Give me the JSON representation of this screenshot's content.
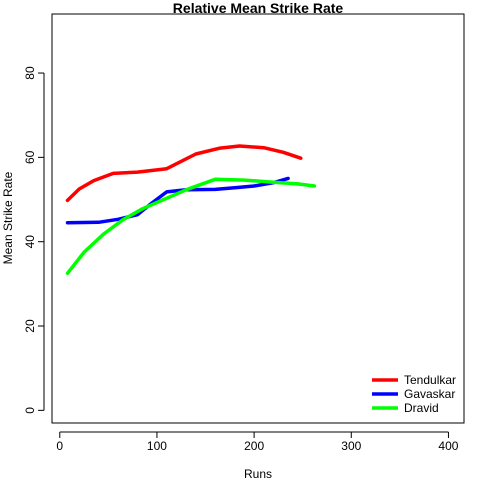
{
  "chart_data": {
    "type": "line",
    "title": "Relative Mean Strike Rate",
    "xlabel": "Runs",
    "ylabel": "Mean Strike Rate",
    "xlim": [
      -8,
      416
    ],
    "ylim": [
      -3,
      94
    ],
    "xticks": [
      0,
      100,
      200,
      300,
      400
    ],
    "yticks": [
      0,
      20,
      40,
      60,
      80
    ],
    "grid": false,
    "legend_position": "bottom-right",
    "series": [
      {
        "name": "Tendulkar",
        "color": "#ff0000",
        "x": [
          8,
          20,
          35,
          55,
          80,
          110,
          140,
          165,
          185,
          210,
          230,
          248
        ],
        "y": [
          49.8,
          52.5,
          54.5,
          56.2,
          56.5,
          57.3,
          60.8,
          62.2,
          62.7,
          62.3,
          61.2,
          59.8
        ]
      },
      {
        "name": "Gavaskar",
        "color": "#0000ff",
        "x": [
          8,
          40,
          60,
          80,
          95,
          110,
          130,
          160,
          180,
          200,
          220,
          235
        ],
        "y": [
          44.5,
          44.6,
          45.3,
          46.4,
          49.2,
          51.8,
          52.3,
          52.4,
          52.8,
          53.2,
          54.0,
          55.0
        ]
      },
      {
        "name": "Dravid",
        "color": "#00ff00",
        "x": [
          8,
          25,
          45,
          65,
          85,
          105,
          130,
          160,
          190,
          220,
          245,
          262
        ],
        "y": [
          32.5,
          37.5,
          41.8,
          45.2,
          47.8,
          49.8,
          52.3,
          54.8,
          54.6,
          54.1,
          53.7,
          53.2
        ]
      }
    ]
  }
}
